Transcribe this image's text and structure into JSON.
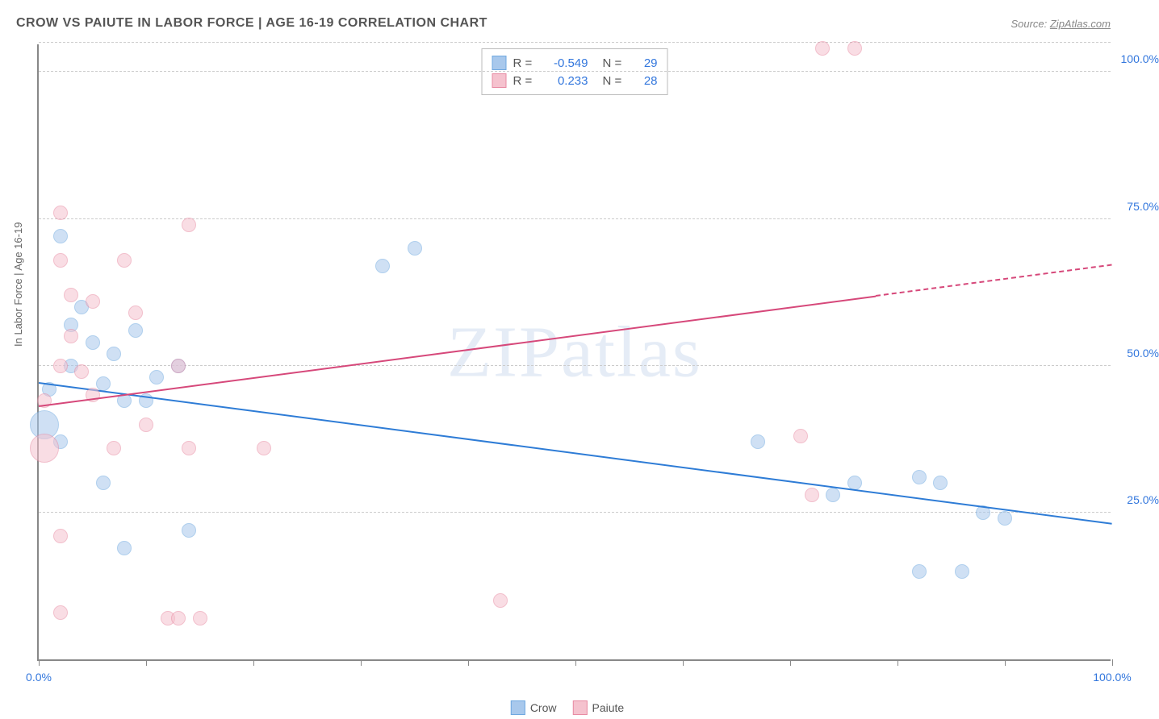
{
  "title": "CROW VS PAIUTE IN LABOR FORCE | AGE 16-19 CORRELATION CHART",
  "source_prefix": "Source: ",
  "source_name": "ZipAtlas.com",
  "y_axis_label": "In Labor Force | Age 16-19",
  "watermark": "ZIPatlas",
  "chart": {
    "type": "scatter",
    "xlim": [
      0,
      100
    ],
    "ylim": [
      0,
      105
    ],
    "x_ticks": [
      0,
      10,
      20,
      30,
      40,
      50,
      60,
      70,
      80,
      90,
      100
    ],
    "x_tick_labels": {
      "0": "0.0%",
      "100": "100.0%"
    },
    "y_gridlines": [
      25,
      50,
      75,
      100,
      105
    ],
    "y_tick_labels": {
      "25": "25.0%",
      "50": "50.0%",
      "75": "75.0%",
      "100": "100.0%"
    },
    "y_label_color": "#3377dd",
    "grid_color": "#cccccc",
    "background_color": "#ffffff",
    "point_radius": 9,
    "point_opacity": 0.55,
    "series": [
      {
        "name": "Crow",
        "fill": "#a8c8ec",
        "stroke": "#6fa8e0",
        "trend_color": "#2e7cd6",
        "R": "-0.549",
        "N": "29",
        "trend": {
          "x1": 0,
          "y1": 47,
          "x2": 100,
          "y2": 23,
          "dash_from": 100
        },
        "points": [
          {
            "x": 2,
            "y": 72,
            "r": 9
          },
          {
            "x": 3,
            "y": 57,
            "r": 9
          },
          {
            "x": 5,
            "y": 54,
            "r": 9
          },
          {
            "x": 7,
            "y": 52,
            "r": 9
          },
          {
            "x": 3,
            "y": 50,
            "r": 9
          },
          {
            "x": 1,
            "y": 46,
            "r": 9
          },
          {
            "x": 0.5,
            "y": 40,
            "r": 18
          },
          {
            "x": 8,
            "y": 44,
            "r": 9
          },
          {
            "x": 10,
            "y": 44,
            "r": 9
          },
          {
            "x": 2,
            "y": 37,
            "r": 9
          },
          {
            "x": 6,
            "y": 30,
            "r": 9
          },
          {
            "x": 8,
            "y": 19,
            "r": 9
          },
          {
            "x": 14,
            "y": 22,
            "r": 9
          },
          {
            "x": 32,
            "y": 67,
            "r": 9
          },
          {
            "x": 35,
            "y": 70,
            "r": 9
          },
          {
            "x": 67,
            "y": 37,
            "r": 9
          },
          {
            "x": 74,
            "y": 28,
            "r": 9
          },
          {
            "x": 76,
            "y": 30,
            "r": 9
          },
          {
            "x": 82,
            "y": 31,
            "r": 9
          },
          {
            "x": 84,
            "y": 30,
            "r": 9
          },
          {
            "x": 88,
            "y": 25,
            "r": 9
          },
          {
            "x": 90,
            "y": 24,
            "r": 9
          },
          {
            "x": 82,
            "y": 15,
            "r": 9
          },
          {
            "x": 86,
            "y": 15,
            "r": 9
          },
          {
            "x": 13,
            "y": 50,
            "r": 9
          },
          {
            "x": 4,
            "y": 60,
            "r": 9
          },
          {
            "x": 6,
            "y": 47,
            "r": 9
          },
          {
            "x": 9,
            "y": 56,
            "r": 9
          },
          {
            "x": 11,
            "y": 48,
            "r": 9
          }
        ]
      },
      {
        "name": "Paiute",
        "fill": "#f5c2ce",
        "stroke": "#e88ba3",
        "trend_color": "#d6487a",
        "R": "0.233",
        "N": "28",
        "trend": {
          "x1": 0,
          "y1": 43,
          "x2": 100,
          "y2": 67,
          "dash_from": 78
        },
        "points": [
          {
            "x": 2,
            "y": 76,
            "r": 9
          },
          {
            "x": 2,
            "y": 68,
            "r": 9
          },
          {
            "x": 8,
            "y": 68,
            "r": 9
          },
          {
            "x": 3,
            "y": 62,
            "r": 9
          },
          {
            "x": 5,
            "y": 61,
            "r": 9
          },
          {
            "x": 9,
            "y": 59,
            "r": 9
          },
          {
            "x": 14,
            "y": 74,
            "r": 9
          },
          {
            "x": 2,
            "y": 50,
            "r": 9
          },
          {
            "x": 4,
            "y": 49,
            "r": 9
          },
          {
            "x": 0.5,
            "y": 44,
            "r": 9
          },
          {
            "x": 0.5,
            "y": 36,
            "r": 18
          },
          {
            "x": 7,
            "y": 36,
            "r": 9
          },
          {
            "x": 2,
            "y": 21,
            "r": 9
          },
          {
            "x": 2,
            "y": 8,
            "r": 9
          },
          {
            "x": 14,
            "y": 36,
            "r": 9
          },
          {
            "x": 21,
            "y": 36,
            "r": 9
          },
          {
            "x": 12,
            "y": 7,
            "r": 9
          },
          {
            "x": 13,
            "y": 7,
            "r": 9
          },
          {
            "x": 15,
            "y": 7,
            "r": 9
          },
          {
            "x": 43,
            "y": 10,
            "r": 9
          },
          {
            "x": 71,
            "y": 38,
            "r": 9
          },
          {
            "x": 72,
            "y": 28,
            "r": 9
          },
          {
            "x": 73,
            "y": 104,
            "r": 9
          },
          {
            "x": 76,
            "y": 104,
            "r": 9
          },
          {
            "x": 13,
            "y": 50,
            "r": 9
          },
          {
            "x": 3,
            "y": 55,
            "r": 9
          },
          {
            "x": 5,
            "y": 45,
            "r": 9
          },
          {
            "x": 10,
            "y": 40,
            "r": 9
          }
        ]
      }
    ]
  },
  "stats_labels": {
    "r": "R =",
    "n": "N ="
  },
  "legend": {
    "series1": "Crow",
    "series2": "Paiute"
  }
}
